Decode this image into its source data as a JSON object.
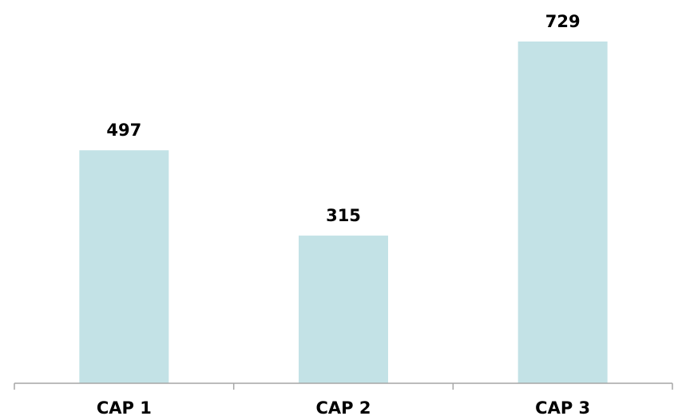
{
  "chart_data": {
    "type": "bar",
    "categories": [
      "CAP 1",
      "CAP 2",
      "CAP 3"
    ],
    "values": [
      497,
      315,
      729
    ],
    "data_labels": [
      "497",
      "315",
      "729"
    ],
    "title": "",
    "xlabel": "",
    "ylabel": "",
    "ylim": [
      0,
      800
    ],
    "grid": false,
    "legend": "none",
    "bar_color": "#c3e2e6",
    "axis_color": "#a6a6a6",
    "label_color": "#000000"
  }
}
